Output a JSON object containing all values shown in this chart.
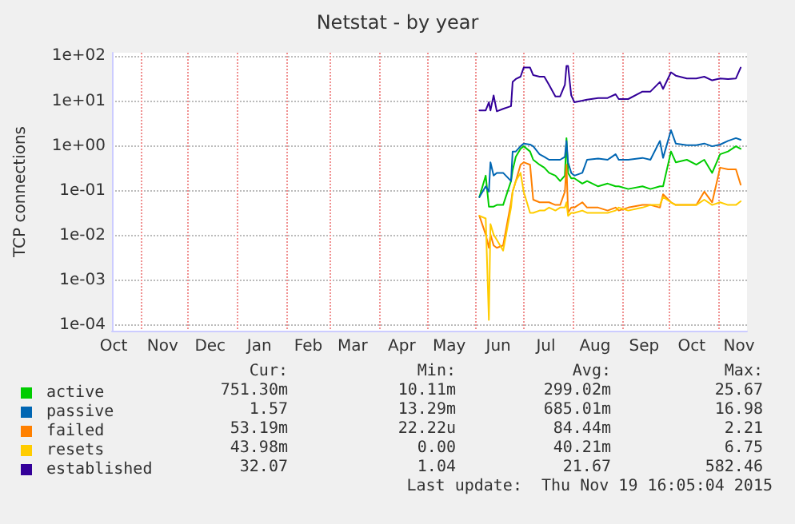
{
  "chart_data": {
    "type": "line",
    "title": "Netstat - by year",
    "ylabel": "TCP connections",
    "log": true,
    "grid": true,
    "legend": "bottom left",
    "marker": "none",
    "line_style": "solid",
    "x": [
      "2015-06-03",
      "2015-06-07",
      "2015-06-09",
      "2015-06-10",
      "2015-06-12",
      "2015-06-14",
      "2015-06-18",
      "2015-06-23",
      "2015-06-24",
      "2015-06-26",
      "2015-06-29",
      "2015-07-01",
      "2015-07-05",
      "2015-07-07",
      "2015-07-11",
      "2015-07-14",
      "2015-07-17",
      "2015-07-21",
      "2015-07-24",
      "2015-07-27",
      "2015-07-28",
      "2015-07-29",
      "2015-07-31",
      "2015-08-02",
      "2015-08-07",
      "2015-08-10",
      "2015-08-17",
      "2015-08-23",
      "2015-08-28",
      "2015-08-30",
      "2015-09-05",
      "2015-09-14",
      "2015-09-19",
      "2015-09-25",
      "2015-09-27",
      "2015-10-02",
      "2015-10-05",
      "2015-10-12",
      "2015-10-18",
      "2015-10-23",
      "2015-10-28",
      "2015-11-02",
      "2015-11-07",
      "2015-11-12",
      "2015-11-15"
    ],
    "xlim": [
      "2014-10-14",
      "2015-11-19"
    ],
    "xticks": [
      {
        "value": "2014-10-15",
        "label": "Oct"
      },
      {
        "value": "2014-11-01",
        "label": null
      },
      {
        "value": "2014-11-15",
        "label": "Nov"
      },
      {
        "value": "2014-12-01",
        "label": null
      },
      {
        "value": "2014-12-15",
        "label": "Dec"
      },
      {
        "value": "2015-01-01",
        "label": null
      },
      {
        "value": "2015-01-15",
        "label": "Jan"
      },
      {
        "value": "2015-02-01",
        "label": null
      },
      {
        "value": "2015-02-15",
        "label": "Feb"
      },
      {
        "value": "2015-03-01",
        "label": null
      },
      {
        "value": "2015-03-15",
        "label": "Mar"
      },
      {
        "value": "2015-04-01",
        "label": null
      },
      {
        "value": "2015-04-15",
        "label": "Apr"
      },
      {
        "value": "2015-05-01",
        "label": null
      },
      {
        "value": "2015-05-15",
        "label": "May"
      },
      {
        "value": "2015-06-01",
        "label": null
      },
      {
        "value": "2015-06-15",
        "label": "Jun"
      },
      {
        "value": "2015-07-01",
        "label": null
      },
      {
        "value": "2015-07-15",
        "label": "Jul"
      },
      {
        "value": "2015-08-01",
        "label": null
      },
      {
        "value": "2015-08-15",
        "label": "Aug"
      },
      {
        "value": "2015-09-01",
        "label": null
      },
      {
        "value": "2015-09-15",
        "label": "Sep"
      },
      {
        "value": "2015-10-01",
        "label": null
      },
      {
        "value": "2015-10-15",
        "label": "Oct"
      },
      {
        "value": "2015-11-01",
        "label": null
      },
      {
        "value": "2015-11-14",
        "label": "Nov"
      }
    ],
    "ylim": [
      7.5e-05,
      120
    ],
    "yticks": [
      {
        "value": 0.0001,
        "label": "1e-04"
      },
      {
        "value": 0.001,
        "label": "1e-03"
      },
      {
        "value": 0.01,
        "label": "1e-02"
      },
      {
        "value": 0.1,
        "label": "1e-01"
      },
      {
        "value": 1,
        "label": "1e+00"
      },
      {
        "value": 10,
        "label": "1e+01"
      },
      {
        "value": 100,
        "label": "1e+02"
      }
    ],
    "series": [
      {
        "name": "active",
        "color": "#00cc00",
        "values": [
          0.072,
          0.217,
          0.044,
          0.044,
          0.044,
          0.048,
          0.048,
          0.164,
          0.285,
          0.57,
          0.86,
          0.98,
          0.75,
          0.49,
          0.38,
          0.327,
          0.25,
          0.217,
          0.164,
          0.217,
          1.49,
          0.25,
          0.189,
          0.189,
          0.144,
          0.164,
          0.125,
          0.144,
          0.125,
          0.125,
          0.109,
          0.125,
          0.109,
          0.125,
          0.125,
          0.75,
          0.43,
          0.49,
          0.38,
          0.49,
          0.25,
          0.65,
          0.75,
          0.98,
          0.86
        ]
      },
      {
        "name": "passive",
        "color": "#0066b3",
        "values": [
          0.072,
          0.125,
          0.095,
          0.43,
          0.217,
          0.25,
          0.25,
          0.164,
          0.75,
          0.75,
          0.98,
          1.13,
          1.07,
          0.98,
          0.65,
          0.57,
          0.49,
          0.49,
          0.49,
          0.57,
          1.29,
          0.43,
          0.25,
          0.217,
          0.25,
          0.49,
          0.52,
          0.49,
          0.65,
          0.49,
          0.49,
          0.54,
          0.49,
          1.29,
          0.54,
          2.24,
          1.13,
          1.04,
          1.04,
          1.13,
          0.98,
          1.07,
          1.29,
          1.49,
          1.37
        ]
      },
      {
        "name": "failed",
        "color": "#ff8000",
        "values": [
          0.0275,
          0.0105,
          0.0053,
          0.0105,
          0.006,
          0.0053,
          0.006,
          0.055,
          0.095,
          0.164,
          0.38,
          0.43,
          0.38,
          0.063,
          0.055,
          0.055,
          0.055,
          0.048,
          0.048,
          0.095,
          0.38,
          0.032,
          0.042,
          0.042,
          0.055,
          0.042,
          0.042,
          0.036,
          0.042,
          0.036,
          0.042,
          0.048,
          0.048,
          0.042,
          0.083,
          0.055,
          0.048,
          0.048,
          0.048,
          0.095,
          0.055,
          0.327,
          0.3,
          0.3,
          0.136
        ]
      },
      {
        "name": "resets",
        "color": "#ffcc00",
        "values": [
          0.0275,
          0.024,
          0.00013,
          0.018,
          0.0105,
          0.008,
          0.0046,
          0.042,
          0.095,
          0.164,
          0.25,
          0.095,
          0.032,
          0.032,
          0.036,
          0.036,
          0.042,
          0.036,
          0.042,
          0.042,
          0.055,
          0.0275,
          0.032,
          0.032,
          0.036,
          0.032,
          0.032,
          0.032,
          0.036,
          0.042,
          0.036,
          0.042,
          0.048,
          0.048,
          0.072,
          0.055,
          0.048,
          0.048,
          0.048,
          0.063,
          0.048,
          0.055,
          0.048,
          0.048,
          0.058
        ]
      },
      {
        "name": "established",
        "color": "#330099",
        "values": [
          6.2,
          6.2,
          9.4,
          6.2,
          13.4,
          5.9,
          6.7,
          7.7,
          26.7,
          31,
          35,
          56,
          56,
          38,
          35,
          35,
          23,
          12.7,
          12.7,
          23,
          61,
          61,
          13.4,
          9.4,
          10.2,
          10.8,
          11.7,
          11.7,
          14.2,
          11.1,
          11.1,
          16.3,
          16.3,
          26.7,
          18.7,
          43.8,
          37,
          32,
          32,
          35,
          29,
          32,
          31,
          32,
          56
        ]
      }
    ],
    "annotations": [
      "Cur:",
      "Min:",
      "Avg:",
      "Max:",
      "751.30m",
      "10.11m",
      "299.02m",
      "25.67",
      "1.57",
      "13.29m",
      "685.01m",
      "16.98",
      "53.19m",
      "22.22u",
      "84.44m",
      "2.21",
      "43.98m",
      "0.00",
      "40.21m",
      "6.75",
      "32.07",
      "1.04",
      "21.67",
      "582.46",
      "Last update:  Thu Nov 19 16:05:04 2015"
    ]
  }
}
